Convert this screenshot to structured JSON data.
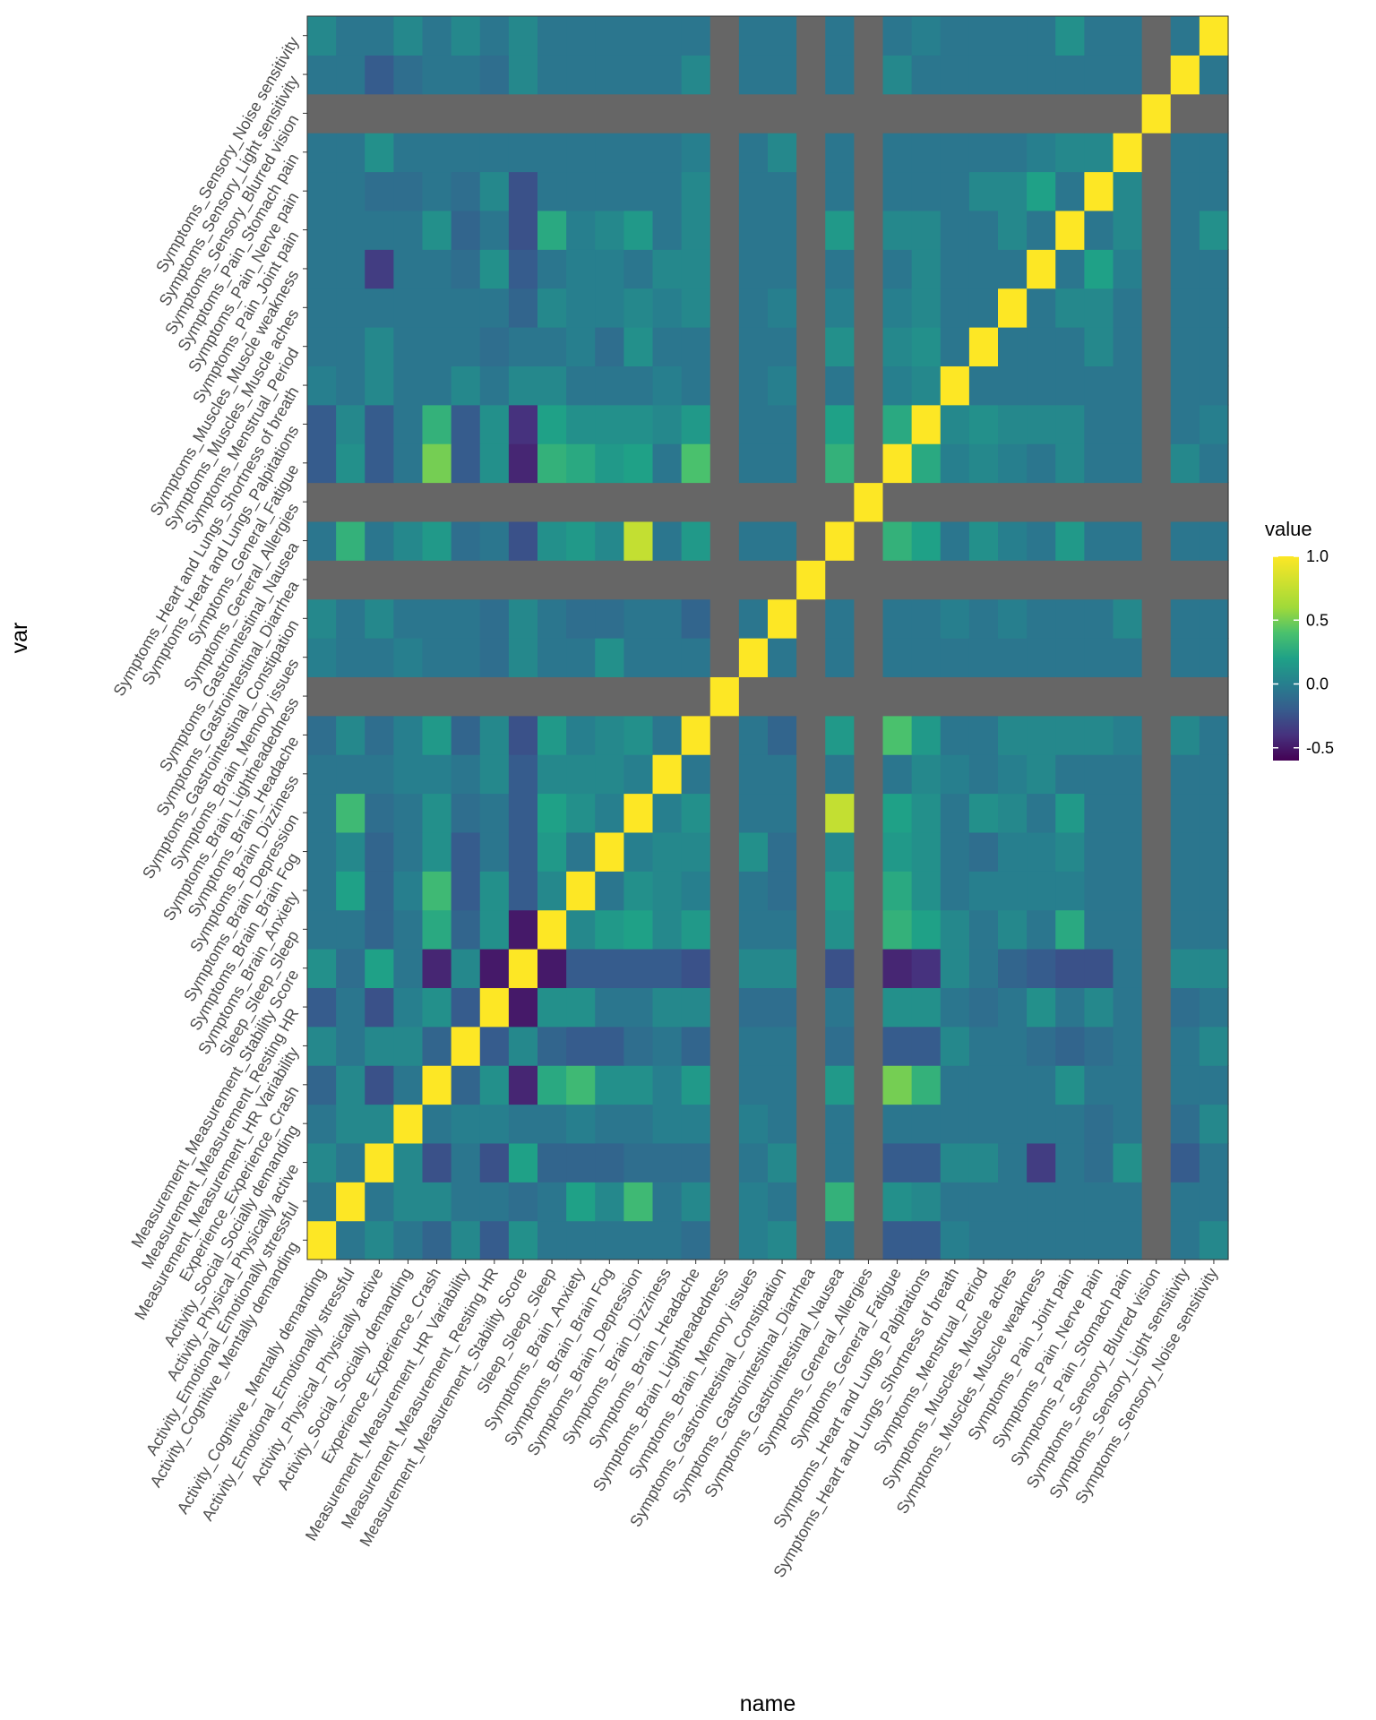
{
  "chart_data": {
    "type": "heatmap",
    "xlabel": "name",
    "ylabel": "var",
    "legend": {
      "title": "value",
      "placement": "right",
      "ticks": [
        1.0,
        0.5,
        0.0,
        -0.5
      ],
      "tick_labels": [
        "1.0",
        "0.5",
        "0.0",
        "-0.5"
      ],
      "range": [
        -0.6,
        1.0
      ]
    },
    "na_color": "#666666",
    "grid": false,
    "variables": [
      "Activity_Cognitive_Mentally demanding",
      "Activity_Emotional_Emotionally stressful",
      "Activity_Physical_Physically active",
      "Activity_Social_Socially demanding",
      "Experience_Experience_Crash",
      "Measurement_Measurement_HR Variability",
      "Measurement_Measurement_Resting HR",
      "Measurement_Measurement_Stability Score",
      "Sleep_Sleep_Sleep",
      "Symptoms_Brain_Anxiety",
      "Symptoms_Brain_Brain Fog",
      "Symptoms_Brain_Depression",
      "Symptoms_Brain_Dizziness",
      "Symptoms_Brain_Headache",
      "Symptoms_Brain_Lightheadedness",
      "Symptoms_Brain_Memory issues",
      "Symptoms_Gastrointestinal_Constipation",
      "Symptoms_Gastrointestinal_Diarrhea",
      "Symptoms_Gastrointestinal_Nausea",
      "Symptoms_General_Allergies",
      "Symptoms_General_Fatigue",
      "Symptoms_Heart and Lungs_Palpitations",
      "Symptoms_Heart and Lungs_Shortness of breath",
      "Symptoms_Menstrual_Period",
      "Symptoms_Muscles_Muscle aches",
      "Symptoms_Muscles_Muscle weakness",
      "Symptoms_Pain_Joint pain",
      "Symptoms_Pain_Nerve pain",
      "Symptoms_Pain_Stomach pain",
      "Symptoms_Sensory_Blurred vision",
      "Symptoms_Sensory_Light sensitivity",
      "Symptoms_Sensory_Noise sensitivity"
    ],
    "matrix": [
      [
        1.0,
        -0.05,
        0.05,
        -0.05,
        -0.15,
        0.05,
        -0.2,
        0.1,
        -0.05,
        -0.05,
        -0.05,
        -0.05,
        -0.05,
        -0.1,
        null,
        0.0,
        0.05,
        null,
        -0.05,
        null,
        -0.2,
        -0.2,
        0.0,
        -0.05,
        -0.05,
        -0.05,
        -0.05,
        -0.05,
        -0.05,
        null,
        -0.05,
        0.05
      ],
      [
        -0.05,
        1.0,
        -0.05,
        0.05,
        0.05,
        -0.05,
        -0.05,
        -0.1,
        -0.05,
        0.2,
        0.05,
        0.35,
        -0.05,
        0.05,
        null,
        0.0,
        -0.05,
        null,
        0.3,
        null,
        0.1,
        0.05,
        -0.05,
        -0.05,
        -0.05,
        -0.05,
        -0.05,
        -0.05,
        -0.05,
        null,
        -0.05,
        -0.05
      ],
      [
        0.05,
        -0.05,
        1.0,
        0.05,
        -0.25,
        -0.05,
        -0.25,
        0.2,
        -0.15,
        -0.15,
        -0.15,
        -0.1,
        -0.1,
        -0.1,
        null,
        -0.05,
        0.05,
        null,
        -0.05,
        null,
        -0.2,
        -0.2,
        0.05,
        0.05,
        -0.05,
        -0.35,
        -0.05,
        -0.1,
        0.1,
        null,
        -0.2,
        -0.05
      ],
      [
        -0.05,
        0.05,
        0.05,
        1.0,
        -0.05,
        0.0,
        0.0,
        -0.05,
        -0.05,
        0.0,
        -0.05,
        -0.05,
        0.0,
        0.0,
        null,
        0.0,
        -0.05,
        null,
        -0.05,
        null,
        -0.05,
        -0.05,
        -0.05,
        -0.05,
        -0.05,
        -0.05,
        -0.05,
        -0.1,
        -0.05,
        null,
        -0.1,
        0.05
      ],
      [
        -0.15,
        0.05,
        -0.25,
        -0.05,
        1.0,
        -0.15,
        0.1,
        -0.45,
        0.25,
        0.35,
        0.1,
        0.1,
        0.0,
        0.15,
        null,
        -0.05,
        -0.05,
        null,
        0.15,
        null,
        0.5,
        0.3,
        -0.05,
        -0.05,
        -0.05,
        -0.05,
        0.1,
        -0.05,
        -0.05,
        null,
        -0.05,
        -0.05
      ],
      [
        0.05,
        -0.05,
        0.05,
        0.05,
        -0.15,
        1.0,
        -0.2,
        0.05,
        -0.15,
        -0.2,
        -0.2,
        -0.1,
        -0.05,
        -0.15,
        null,
        -0.05,
        -0.05,
        null,
        -0.1,
        null,
        -0.2,
        -0.2,
        0.05,
        -0.05,
        -0.05,
        -0.1,
        -0.15,
        -0.1,
        -0.05,
        null,
        -0.05,
        0.05
      ],
      [
        -0.2,
        -0.05,
        -0.25,
        0.0,
        0.1,
        -0.2,
        1.0,
        -0.5,
        0.1,
        0.1,
        -0.05,
        -0.05,
        0.05,
        0.05,
        null,
        -0.1,
        -0.1,
        null,
        -0.05,
        null,
        0.1,
        0.1,
        -0.05,
        -0.1,
        -0.05,
        0.1,
        -0.05,
        0.05,
        -0.05,
        null,
        -0.1,
        -0.05
      ],
      [
        0.1,
        -0.1,
        0.2,
        -0.05,
        -0.45,
        0.05,
        -0.5,
        1.0,
        -0.5,
        -0.2,
        -0.2,
        -0.2,
        -0.2,
        -0.25,
        null,
        0.05,
        0.05,
        null,
        -0.25,
        null,
        -0.45,
        -0.4,
        0.05,
        -0.05,
        -0.15,
        -0.2,
        -0.25,
        -0.25,
        -0.05,
        null,
        0.05,
        0.05
      ],
      [
        -0.05,
        -0.05,
        -0.15,
        -0.05,
        0.25,
        -0.15,
        0.1,
        -0.5,
        1.0,
        0.05,
        0.15,
        0.2,
        0.05,
        0.15,
        null,
        -0.05,
        -0.05,
        null,
        0.1,
        null,
        0.3,
        0.2,
        0.05,
        -0.05,
        0.05,
        -0.05,
        0.25,
        -0.05,
        -0.05,
        null,
        -0.05,
        -0.05
      ],
      [
        -0.05,
        0.2,
        -0.15,
        0.0,
        0.35,
        -0.2,
        0.1,
        -0.2,
        0.05,
        1.0,
        -0.05,
        0.1,
        0.05,
        0.0,
        null,
        -0.05,
        -0.1,
        null,
        0.15,
        null,
        0.25,
        0.1,
        -0.05,
        0.0,
        0.0,
        0.0,
        0.0,
        -0.05,
        -0.05,
        null,
        -0.05,
        -0.05
      ],
      [
        -0.05,
        0.05,
        -0.15,
        -0.05,
        0.1,
        -0.2,
        -0.05,
        -0.2,
        0.15,
        -0.05,
        1.0,
        0.0,
        0.05,
        0.05,
        null,
        0.1,
        -0.1,
        null,
        0.05,
        null,
        0.15,
        0.1,
        -0.05,
        -0.1,
        0.0,
        0.0,
        0.05,
        -0.05,
        -0.05,
        null,
        -0.05,
        -0.05
      ],
      [
        -0.05,
        0.35,
        -0.1,
        -0.05,
        0.1,
        -0.1,
        -0.05,
        -0.2,
        0.2,
        0.1,
        0.0,
        1.0,
        0.0,
        0.1,
        null,
        -0.05,
        -0.05,
        null,
        0.75,
        null,
        0.2,
        0.1,
        -0.05,
        0.1,
        0.05,
        -0.05,
        0.15,
        -0.05,
        -0.05,
        null,
        -0.05,
        -0.05
      ],
      [
        -0.05,
        -0.05,
        -0.05,
        0.0,
        0.0,
        -0.05,
        0.05,
        -0.2,
        0.05,
        0.05,
        0.05,
        0.0,
        1.0,
        -0.05,
        null,
        -0.05,
        -0.05,
        null,
        -0.05,
        null,
        -0.05,
        0.05,
        0.0,
        -0.05,
        0.0,
        0.05,
        -0.05,
        -0.05,
        -0.05,
        null,
        -0.05,
        -0.05
      ],
      [
        -0.1,
        0.05,
        -0.1,
        0.0,
        0.15,
        -0.15,
        0.05,
        -0.25,
        0.15,
        0.0,
        0.05,
        0.1,
        -0.05,
        1.0,
        null,
        -0.05,
        -0.15,
        null,
        0.15,
        null,
        0.4,
        0.15,
        -0.05,
        -0.05,
        0.05,
        0.05,
        0.05,
        0.05,
        0.0,
        null,
        0.05,
        -0.05
      ],
      [
        null,
        null,
        null,
        null,
        null,
        null,
        null,
        null,
        null,
        null,
        null,
        null,
        null,
        null,
        1.0,
        null,
        null,
        null,
        null,
        null,
        null,
        null,
        null,
        null,
        null,
        null,
        null,
        null,
        null,
        null,
        null,
        null
      ],
      [
        0.0,
        -0.05,
        -0.05,
        0.0,
        -0.05,
        -0.05,
        -0.1,
        0.05,
        -0.05,
        -0.05,
        0.1,
        -0.05,
        -0.05,
        -0.05,
        null,
        1.0,
        -0.05,
        null,
        -0.05,
        null,
        -0.05,
        -0.05,
        -0.05,
        -0.05,
        -0.05,
        -0.05,
        -0.05,
        -0.05,
        -0.05,
        null,
        -0.05,
        -0.05
      ],
      [
        0.05,
        -0.05,
        0.05,
        -0.05,
        -0.05,
        -0.05,
        -0.1,
        0.05,
        -0.05,
        -0.1,
        -0.1,
        -0.05,
        -0.05,
        -0.15,
        null,
        -0.05,
        1.0,
        null,
        -0.05,
        null,
        -0.05,
        -0.05,
        0.0,
        -0.05,
        0.0,
        -0.05,
        -0.05,
        -0.05,
        0.05,
        null,
        -0.05,
        -0.05
      ],
      [
        null,
        null,
        null,
        null,
        null,
        null,
        null,
        null,
        null,
        null,
        null,
        null,
        null,
        null,
        null,
        null,
        null,
        1.0,
        null,
        null,
        null,
        null,
        null,
        null,
        null,
        null,
        null,
        null,
        null,
        null,
        null,
        null
      ],
      [
        -0.05,
        0.3,
        -0.05,
        0.05,
        0.15,
        -0.1,
        -0.05,
        -0.25,
        0.1,
        0.15,
        0.05,
        0.75,
        -0.05,
        0.15,
        null,
        -0.05,
        -0.05,
        null,
        1.0,
        null,
        0.3,
        0.2,
        -0.05,
        0.1,
        0.0,
        -0.05,
        0.15,
        -0.05,
        -0.05,
        null,
        -0.05,
        -0.05
      ],
      [
        null,
        null,
        null,
        null,
        null,
        null,
        null,
        null,
        null,
        null,
        null,
        null,
        null,
        null,
        null,
        null,
        null,
        null,
        null,
        1.0,
        null,
        null,
        null,
        null,
        null,
        null,
        null,
        null,
        null,
        null,
        null,
        null
      ],
      [
        -0.2,
        0.1,
        -0.2,
        -0.05,
        0.5,
        -0.2,
        0.1,
        -0.45,
        0.3,
        0.25,
        0.15,
        0.2,
        -0.05,
        0.4,
        null,
        -0.05,
        -0.05,
        null,
        0.3,
        null,
        1.0,
        0.25,
        0.0,
        0.05,
        0.0,
        -0.05,
        0.05,
        -0.05,
        -0.05,
        null,
        0.05,
        -0.05
      ],
      [
        -0.2,
        0.05,
        -0.2,
        -0.05,
        0.3,
        -0.2,
        0.1,
        -0.4,
        0.2,
        0.1,
        0.1,
        0.1,
        0.05,
        0.15,
        null,
        -0.05,
        -0.05,
        null,
        0.2,
        null,
        0.25,
        1.0,
        0.05,
        0.1,
        0.05,
        0.05,
        0.05,
        -0.05,
        -0.05,
        null,
        -0.05,
        0.0
      ],
      [
        0.0,
        -0.05,
        0.05,
        -0.05,
        -0.05,
        0.05,
        -0.05,
        0.05,
        0.05,
        -0.05,
        -0.05,
        -0.05,
        0.0,
        -0.05,
        null,
        -0.05,
        0.0,
        null,
        -0.05,
        null,
        0.0,
        0.05,
        1.0,
        -0.05,
        -0.05,
        -0.05,
        -0.05,
        -0.05,
        -0.05,
        null,
        -0.05,
        -0.05
      ],
      [
        -0.05,
        -0.05,
        0.05,
        -0.05,
        -0.05,
        -0.05,
        -0.1,
        -0.05,
        -0.05,
        0.0,
        -0.1,
        0.1,
        -0.05,
        -0.05,
        null,
        -0.05,
        -0.05,
        null,
        0.1,
        null,
        0.05,
        0.1,
        -0.05,
        1.0,
        -0.05,
        -0.05,
        -0.05,
        0.05,
        -0.05,
        null,
        -0.05,
        -0.05
      ],
      [
        -0.05,
        -0.05,
        -0.05,
        -0.05,
        -0.05,
        -0.05,
        -0.05,
        -0.15,
        0.05,
        0.0,
        0.0,
        0.05,
        0.0,
        0.05,
        null,
        -0.05,
        0.0,
        null,
        0.0,
        null,
        0.0,
        0.05,
        -0.05,
        -0.05,
        1.0,
        -0.05,
        0.05,
        0.05,
        -0.05,
        null,
        -0.05,
        -0.05
      ],
      [
        -0.05,
        -0.05,
        -0.35,
        -0.05,
        -0.05,
        -0.1,
        0.1,
        -0.2,
        -0.05,
        0.0,
        0.0,
        -0.05,
        0.05,
        0.05,
        null,
        -0.05,
        -0.05,
        null,
        -0.05,
        null,
        -0.05,
        0.05,
        -0.05,
        -0.05,
        -0.05,
        1.0,
        -0.05,
        0.2,
        0.0,
        null,
        -0.05,
        -0.05
      ],
      [
        -0.05,
        -0.05,
        -0.05,
        -0.05,
        0.1,
        -0.15,
        -0.05,
        -0.25,
        0.25,
        0.0,
        0.05,
        0.15,
        -0.05,
        0.05,
        null,
        -0.05,
        -0.05,
        null,
        0.15,
        null,
        0.05,
        0.05,
        -0.05,
        -0.05,
        0.05,
        -0.05,
        1.0,
        -0.05,
        0.05,
        null,
        -0.05,
        0.1
      ],
      [
        -0.05,
        -0.05,
        -0.1,
        -0.1,
        -0.05,
        -0.1,
        0.05,
        -0.25,
        -0.05,
        -0.05,
        -0.05,
        -0.05,
        -0.05,
        0.05,
        null,
        -0.05,
        -0.05,
        null,
        -0.05,
        null,
        -0.05,
        -0.05,
        -0.05,
        0.05,
        0.05,
        0.2,
        -0.05,
        1.0,
        0.05,
        null,
        -0.05,
        -0.05
      ],
      [
        -0.05,
        -0.05,
        0.1,
        -0.05,
        -0.05,
        -0.05,
        -0.05,
        -0.05,
        -0.05,
        -0.05,
        -0.05,
        -0.05,
        -0.05,
        0.0,
        null,
        -0.05,
        0.05,
        null,
        -0.05,
        null,
        -0.05,
        -0.05,
        -0.05,
        -0.05,
        -0.05,
        0.0,
        0.05,
        0.05,
        1.0,
        null,
        -0.05,
        -0.05
      ],
      [
        null,
        null,
        null,
        null,
        null,
        null,
        null,
        null,
        null,
        null,
        null,
        null,
        null,
        null,
        null,
        null,
        null,
        null,
        null,
        null,
        null,
        null,
        null,
        null,
        null,
        null,
        null,
        null,
        null,
        1.0,
        null,
        null
      ],
      [
        -0.05,
        -0.05,
        -0.2,
        -0.1,
        -0.05,
        -0.05,
        -0.1,
        0.05,
        -0.05,
        -0.05,
        -0.05,
        -0.05,
        -0.05,
        0.05,
        null,
        -0.05,
        -0.05,
        null,
        -0.05,
        null,
        0.05,
        -0.05,
        -0.05,
        -0.05,
        -0.05,
        -0.05,
        -0.05,
        -0.05,
        -0.05,
        null,
        1.0,
        -0.05
      ],
      [
        0.05,
        -0.05,
        -0.05,
        0.05,
        -0.05,
        0.05,
        -0.05,
        0.05,
        -0.05,
        -0.05,
        -0.05,
        -0.05,
        -0.05,
        -0.05,
        null,
        -0.05,
        -0.05,
        null,
        -0.05,
        null,
        -0.05,
        0.0,
        -0.05,
        -0.05,
        -0.05,
        -0.05,
        0.1,
        -0.05,
        -0.05,
        null,
        -0.05,
        1.0
      ]
    ]
  }
}
